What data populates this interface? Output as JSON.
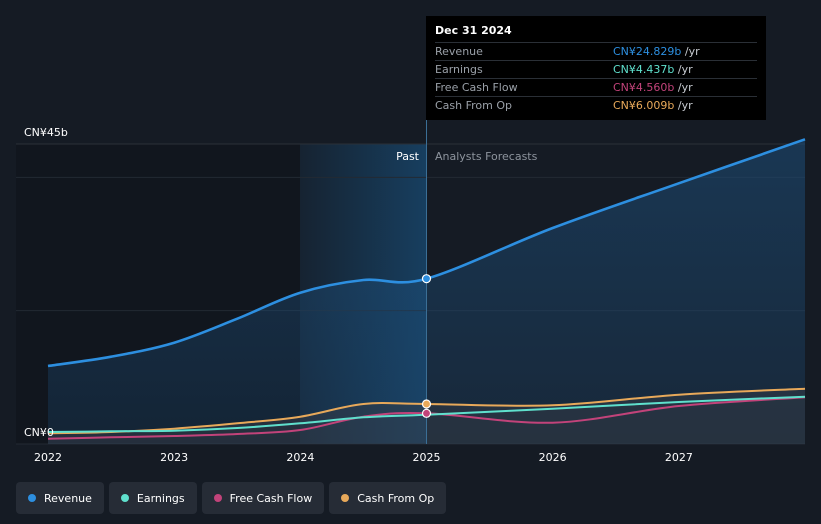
{
  "chart_data": {
    "type": "line",
    "title": "",
    "x_labels": [
      "2022",
      "2023",
      "2024",
      "2025",
      "2026",
      "2027"
    ],
    "y_tick_labels": {
      "top": "CN¥45b",
      "bottom": "CN¥0"
    },
    "ylim": [
      0,
      45
    ],
    "xlim": [
      2022,
      2028.0
    ],
    "past_label": "Past",
    "forecast_label": "Analysts Forecasts",
    "highlight_x": 2025.0,
    "series": [
      {
        "name": "Revenue",
        "color": "#2d8fe0",
        "x": [
          2022,
          2022.5,
          2023,
          2023.5,
          2024,
          2024.5,
          2025.0,
          2026,
          2027,
          2028.0
        ],
        "values": [
          11.7,
          13.1,
          15.2,
          18.8,
          22.7,
          24.6,
          24.8,
          32.4,
          39.1,
          45.7
        ]
      },
      {
        "name": "Earnings",
        "color": "#5fe0cd",
        "x": [
          2022,
          2022.5,
          2023,
          2023.5,
          2024,
          2024.5,
          2025.0,
          2026,
          2027,
          2028.0
        ],
        "values": [
          1.8,
          1.9,
          2.0,
          2.4,
          3.1,
          4.0,
          4.4,
          5.3,
          6.3,
          7.1
        ]
      },
      {
        "name": "Free Cash Flow",
        "color": "#c2437a",
        "x": [
          2022,
          2022.5,
          2023,
          2023.5,
          2024,
          2024.5,
          2025.0,
          2026,
          2027,
          2028.0
        ],
        "values": [
          0.8,
          1.0,
          1.2,
          1.5,
          2.1,
          4.1,
          4.6,
          3.2,
          5.7,
          7.0
        ]
      },
      {
        "name": "Cash From Op",
        "color": "#e8a95a",
        "x": [
          2022,
          2022.5,
          2023,
          2023.5,
          2024,
          2024.5,
          2025.0,
          2026,
          2027,
          2028.0
        ],
        "values": [
          1.6,
          1.8,
          2.3,
          3.1,
          4.1,
          6.0,
          6.0,
          5.8,
          7.4,
          8.3
        ]
      }
    ]
  },
  "tooltip": {
    "date": "Dec 31 2024",
    "rows": [
      {
        "label": "Revenue",
        "value": "CN¥24.829b",
        "unit": " /yr",
        "color": "#2d8fe0"
      },
      {
        "label": "Earnings",
        "value": "CN¥4.437b",
        "unit": " /yr",
        "color": "#5fe0cd"
      },
      {
        "label": "Free Cash Flow",
        "value": "CN¥4.560b",
        "unit": " /yr",
        "color": "#c2437a"
      },
      {
        "label": "Cash From Op",
        "value": "CN¥6.009b",
        "unit": " /yr",
        "color": "#e8a95a"
      }
    ]
  },
  "legend": [
    {
      "label": "Revenue",
      "color": "#2d8fe0"
    },
    {
      "label": "Earnings",
      "color": "#5fe0cd"
    },
    {
      "label": "Free Cash Flow",
      "color": "#c2437a"
    },
    {
      "label": "Cash From Op",
      "color": "#e8a95a"
    }
  ]
}
